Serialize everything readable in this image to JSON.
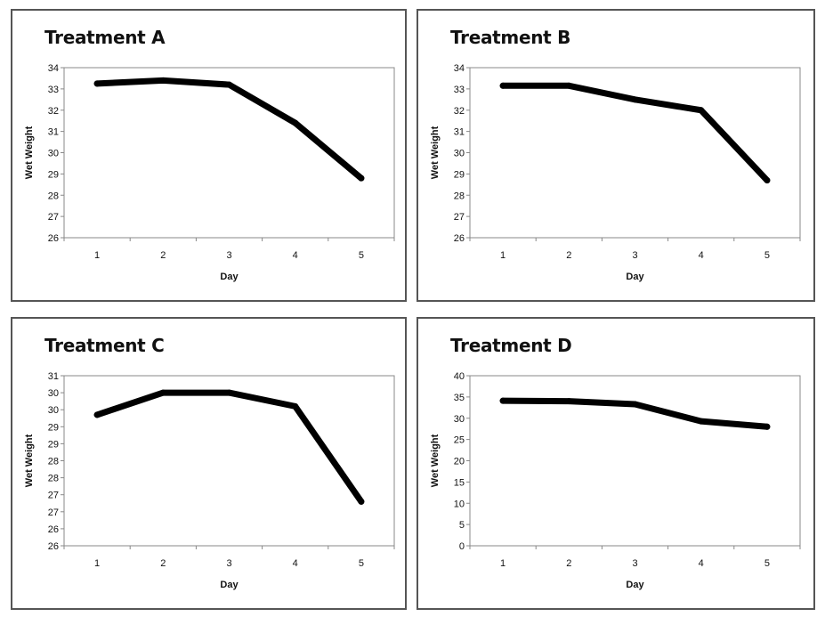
{
  "chart_data": [
    {
      "type": "line",
      "title": "Treatment A",
      "xlabel": "Day",
      "ylabel": "Wet Weight",
      "x": [
        1,
        2,
        3,
        4,
        5
      ],
      "series": [
        {
          "values": [
            33.25,
            33.4,
            33.2,
            31.4,
            28.8
          ]
        }
      ],
      "ylim": [
        26,
        34
      ],
      "yticks": [
        "26",
        "27",
        "28",
        "29",
        "30",
        "31",
        "32",
        "33",
        "34"
      ],
      "xticks": [
        "1",
        "2",
        "3",
        "4",
        "5"
      ],
      "grid": false,
      "legend": "none"
    },
    {
      "type": "line",
      "title": "Treatment B",
      "xlabel": "Day",
      "ylabel": "Wet Weight",
      "x": [
        1,
        2,
        3,
        4,
        5
      ],
      "series": [
        {
          "values": [
            33.15,
            33.15,
            32.5,
            32.0,
            28.7
          ]
        }
      ],
      "ylim": [
        26,
        34
      ],
      "yticks": [
        "26",
        "27",
        "28",
        "29",
        "30",
        "31",
        "32",
        "33",
        "34"
      ],
      "xticks": [
        "1",
        "2",
        "3",
        "4",
        "5"
      ],
      "grid": false,
      "legend": "none"
    },
    {
      "type": "line",
      "title": "Treatment C",
      "xlabel": "Day",
      "ylabel": "Wet Weight",
      "x": [
        1,
        2,
        3,
        4,
        5
      ],
      "series": [
        {
          "values": [
            29.85,
            30.5,
            30.5,
            30.1,
            27.3
          ]
        }
      ],
      "ylim": [
        26,
        31
      ],
      "yticks": [
        "26",
        "26",
        "27",
        "27",
        "28",
        "28",
        "29",
        "29",
        "30",
        "30",
        "31"
      ],
      "xticks": [
        "1",
        "2",
        "3",
        "4",
        "5"
      ],
      "grid": false,
      "legend": "none"
    },
    {
      "type": "line",
      "title": "Treatment D",
      "xlabel": "Day",
      "ylabel": "Wet Weight",
      "x": [
        1,
        2,
        3,
        4,
        5
      ],
      "series": [
        {
          "values": [
            34.1,
            34.0,
            33.3,
            29.3,
            28.0
          ]
        }
      ],
      "ylim": [
        0,
        40
      ],
      "yticks": [
        "0",
        "5",
        "10",
        "15",
        "20",
        "25",
        "30",
        "35",
        "40"
      ],
      "xticks": [
        "1",
        "2",
        "3",
        "4",
        "5"
      ],
      "grid": false,
      "legend": "none"
    }
  ],
  "style": {
    "line_color": "#000000",
    "axis_color": "#888888",
    "text_color": "#111111",
    "border_color": "#555555"
  }
}
